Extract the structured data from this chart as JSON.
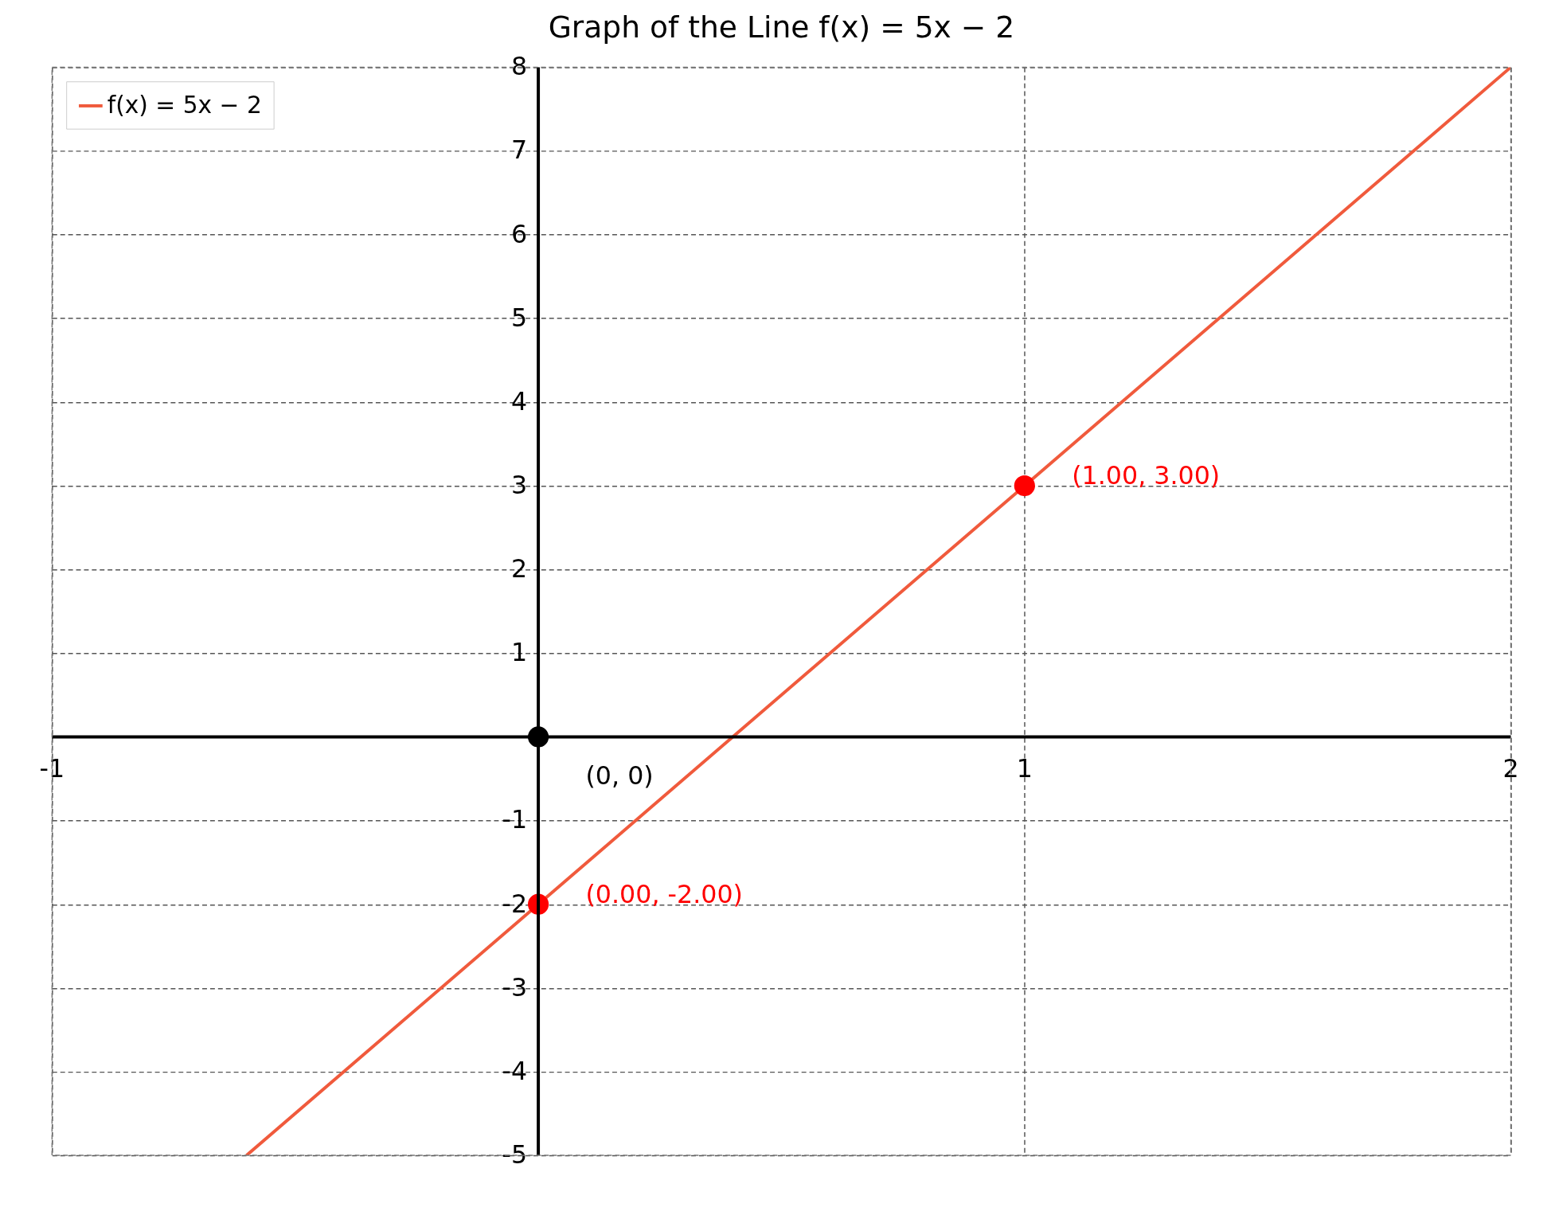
{
  "chart_data": {
    "type": "line",
    "title": "Graph of the Line f(x) = 5x − 2",
    "series": [
      {
        "name": "f(x) = 5x − 2",
        "color": "#f05a3c",
        "x": [
          -0.6,
          2
        ],
        "values": [
          -5,
          8
        ],
        "line_style": "solid"
      },
      {
        "type": "scatter",
        "color": "#ff0000",
        "x": [
          0,
          1
        ],
        "values": [
          -2,
          3
        ],
        "marker": "circle",
        "value_labels": [
          "(0.00, -2.00)",
          "(1.00, 3.00)"
        ]
      },
      {
        "type": "scatter",
        "color": "#000000",
        "x": [
          0
        ],
        "values": [
          0
        ],
        "marker": "circle",
        "value_labels": [
          "(0, 0)"
        ]
      }
    ],
    "xlim": [
      -1,
      2
    ],
    "ylim": [
      -5,
      8
    ],
    "xticks": [
      -1,
      1,
      2
    ],
    "yticks": [
      -5,
      -4,
      -3,
      -2,
      -1,
      1,
      2,
      3,
      4,
      5,
      6,
      7,
      8
    ],
    "grid": true,
    "legend": "top left"
  }
}
